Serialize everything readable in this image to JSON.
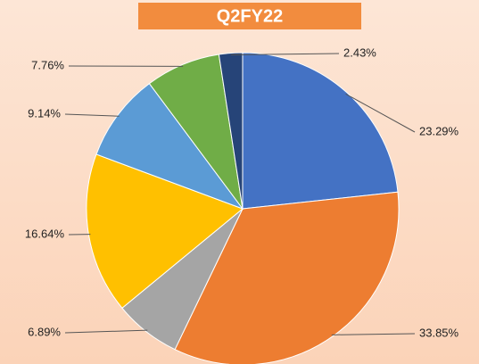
{
  "chart_data": {
    "type": "pie",
    "title": "Q2FY22",
    "values": [
      23.29,
      33.85,
      6.89,
      16.64,
      9.14,
      7.76,
      2.43
    ],
    "value_labels": [
      "23.29%",
      "33.85%",
      "6.89%",
      "16.64%",
      "9.14%",
      "7.76%",
      "2.43%"
    ],
    "colors": [
      "#4472c4",
      "#ed7d31",
      "#a5a5a5",
      "#ffc000",
      "#5b9bd5",
      "#70ad47",
      "#264478"
    ]
  }
}
